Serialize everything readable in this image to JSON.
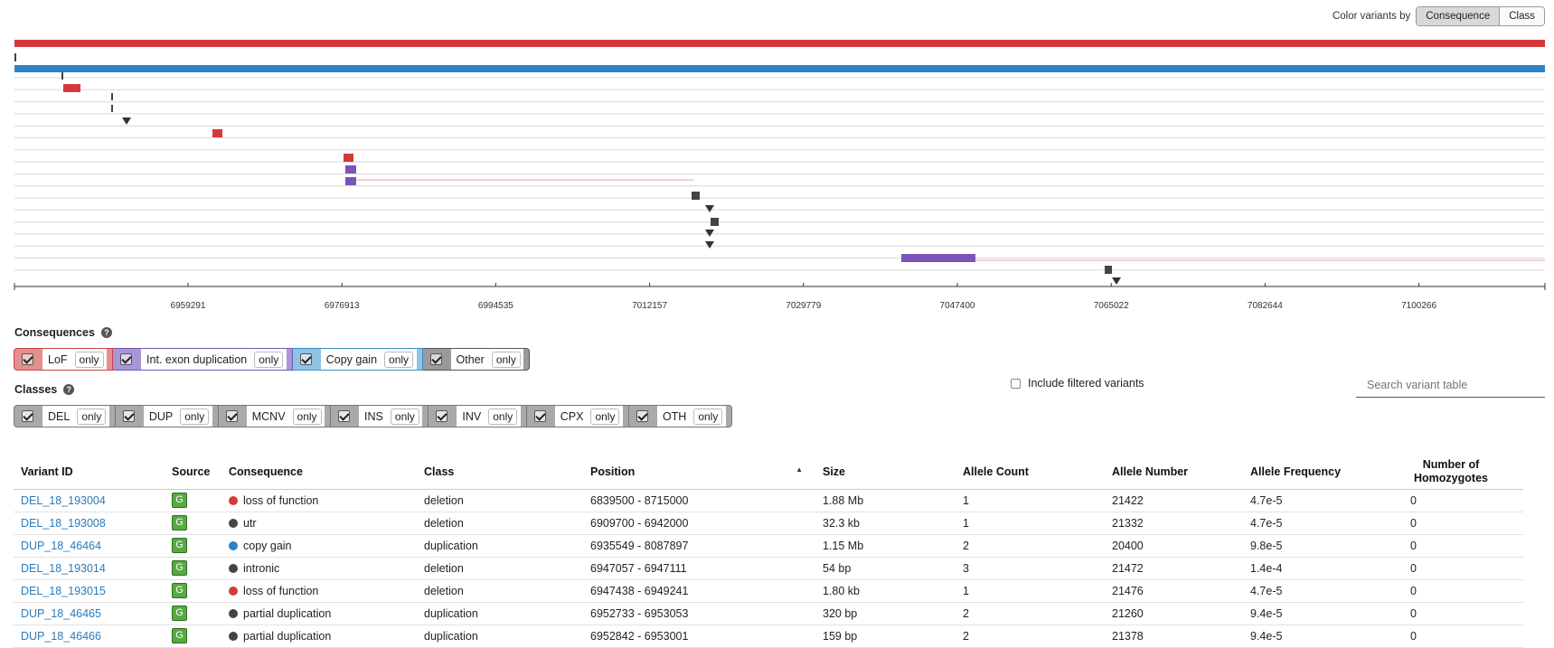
{
  "color_by": {
    "label": "Color variants by",
    "options": [
      "Consequence",
      "Class"
    ],
    "active": "Consequence"
  },
  "colors": {
    "lof": "#d43a3a",
    "blue": "#2e82c2",
    "dup": "#7b54bb",
    "other": "#444444",
    "link": "#2b7bb9",
    "source_badge": "#58a844"
  },
  "track": {
    "ticks": [
      "6959291",
      "6976913",
      "6994535",
      "7012157",
      "7029779",
      "7047400",
      "7065022",
      "7082644",
      "7100266"
    ],
    "top_bars": [
      {
        "color": "#d43a3a"
      },
      {
        "color": "#2e82c2"
      }
    ]
  },
  "consequences": {
    "title": "Consequences",
    "help": "?",
    "items": [
      {
        "label": "LoF",
        "only": "only"
      },
      {
        "label": "Int. exon duplication",
        "only": "only"
      },
      {
        "label": "Copy gain",
        "only": "only"
      },
      {
        "label": "Other",
        "only": "only"
      }
    ]
  },
  "classes": {
    "title": "Classes",
    "help": "?",
    "items": [
      {
        "label": "DEL",
        "only": "only"
      },
      {
        "label": "DUP",
        "only": "only"
      },
      {
        "label": "MCNV",
        "only": "only"
      },
      {
        "label": "INS",
        "only": "only"
      },
      {
        "label": "INV",
        "only": "only"
      },
      {
        "label": "CPX",
        "only": "only"
      },
      {
        "label": "OTH",
        "only": "only"
      }
    ]
  },
  "include_filtered": "Include filtered variants",
  "search": {
    "placeholder": "Search variant table"
  },
  "table": {
    "headers": {
      "variant_id": "Variant ID",
      "source": "Source",
      "consequence": "Consequence",
      "class": "Class",
      "position": "Position",
      "sort_indicator": "▲",
      "size": "Size",
      "allele_count": "Allele Count",
      "allele_number": "Allele Number",
      "allele_frequency": "Allele Frequency",
      "homozygotes_line1": "Number of",
      "homozygotes_line2": "Homozygotes"
    },
    "rows": [
      {
        "id": "DEL_18_193004",
        "source": "G",
        "consequence": "loss of function",
        "cons_color": "#d43a3a",
        "class": "deletion",
        "position": "6839500 - 8715000",
        "size": "1.88 Mb",
        "ac": "1",
        "an": "21422",
        "af": "4.7e-5",
        "hom": "0"
      },
      {
        "id": "DEL_18_193008",
        "source": "G",
        "consequence": "utr",
        "cons_color": "#444444",
        "class": "deletion",
        "position": "6909700 - 6942000",
        "size": "32.3 kb",
        "ac": "1",
        "an": "21332",
        "af": "4.7e-5",
        "hom": "0"
      },
      {
        "id": "DUP_18_46464",
        "source": "G",
        "consequence": "copy gain",
        "cons_color": "#2e82c2",
        "class": "duplication",
        "position": "6935549 - 8087897",
        "size": "1.15 Mb",
        "ac": "2",
        "an": "20400",
        "af": "9.8e-5",
        "hom": "0"
      },
      {
        "id": "DEL_18_193014",
        "source": "G",
        "consequence": "intronic",
        "cons_color": "#444444",
        "class": "deletion",
        "position": "6947057 - 6947111",
        "size": "54 bp",
        "ac": "3",
        "an": "21472",
        "af": "1.4e-4",
        "hom": "0"
      },
      {
        "id": "DEL_18_193015",
        "source": "G",
        "consequence": "loss of function",
        "cons_color": "#d43a3a",
        "class": "deletion",
        "position": "6947438 - 6949241",
        "size": "1.80 kb",
        "ac": "1",
        "an": "21476",
        "af": "4.7e-5",
        "hom": "0"
      },
      {
        "id": "DUP_18_46465",
        "source": "G",
        "consequence": "partial duplication",
        "cons_color": "#444444",
        "class": "duplication",
        "position": "6952733 - 6953053",
        "size": "320 bp",
        "ac": "2",
        "an": "21260",
        "af": "9.4e-5",
        "hom": "0"
      },
      {
        "id": "DUP_18_46466",
        "source": "G",
        "consequence": "partial duplication",
        "cons_color": "#444444",
        "class": "duplication",
        "position": "6952842 - 6953001",
        "size": "159 bp",
        "ac": "2",
        "an": "21378",
        "af": "9.4e-5",
        "hom": "0"
      }
    ]
  }
}
